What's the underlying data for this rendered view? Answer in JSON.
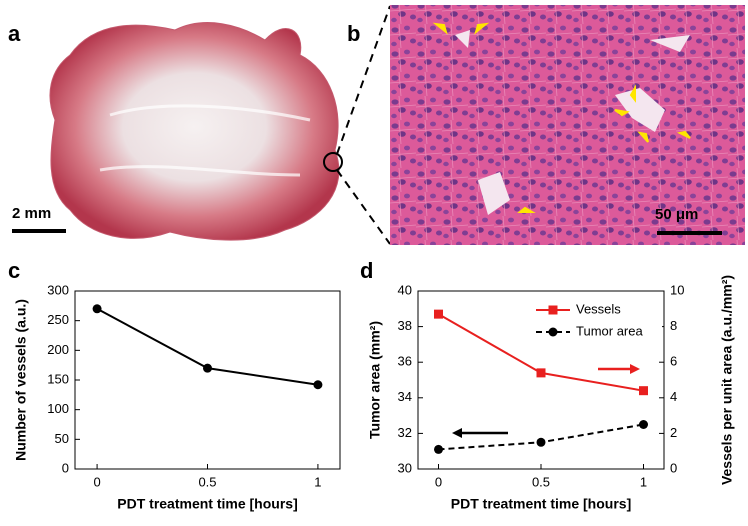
{
  "panels": {
    "a": {
      "label": "a",
      "scale_bar": "2 mm"
    },
    "b": {
      "label": "b",
      "scale_bar": "50 μm"
    }
  },
  "chart_data": [
    {
      "type": "line",
      "panel_label": "c",
      "x_label": "PDT treatment time [hours]",
      "y_label": "Number of vessels (a.u.)",
      "x": [
        0,
        0.5,
        1
      ],
      "series": [
        {
          "color": "#000000",
          "marker": "circle",
          "dash": false,
          "values": [
            270,
            170,
            142
          ]
        }
      ],
      "xlim": [
        -0.1,
        1.1
      ],
      "xticks": [
        0,
        0.5,
        1
      ],
      "ylim": [
        0,
        300
      ],
      "yticks": [
        0,
        50,
        100,
        150,
        200,
        250,
        300
      ]
    },
    {
      "type": "line",
      "panel_label": "d",
      "x_label": "PDT treatment time [hours]",
      "y_label": "Tumor area (mm²)",
      "y2_label": "Vessels per unit area (a.u./mm²)",
      "x": [
        0,
        0.5,
        1
      ],
      "series": [
        {
          "name": "Vessels",
          "color": "#e8201f",
          "marker": "square",
          "dash": false,
          "axis": "y2",
          "values": [
            8.7,
            5.4,
            4.4
          ]
        },
        {
          "name": "Tumor area",
          "color": "#000000",
          "marker": "circle",
          "dash": true,
          "values": [
            31.1,
            31.5,
            32.5
          ]
        }
      ],
      "xlim": [
        -0.1,
        1.1
      ],
      "xticks": [
        0,
        0.5,
        1
      ],
      "ylim": [
        30,
        40
      ],
      "yticks": [
        30,
        32,
        34,
        36,
        38,
        40
      ],
      "y2lim": [
        0,
        10
      ],
      "y2ticks": [
        0,
        2,
        4,
        6,
        8,
        10
      ],
      "legend": "upper right"
    }
  ]
}
